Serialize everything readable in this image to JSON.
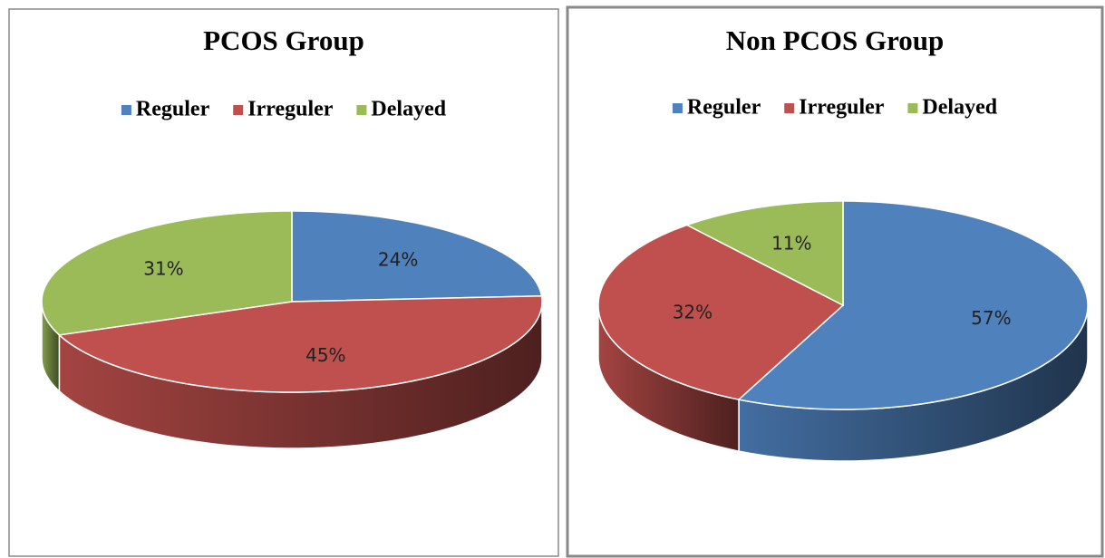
{
  "chart_data": [
    {
      "type": "pie",
      "title": "PCOS Group",
      "categories": [
        "Reguler",
        "Irreguler",
        "Delayed"
      ],
      "values": [
        24,
        45,
        31
      ],
      "value_labels": [
        "24%",
        "45%",
        "31%"
      ],
      "colors": [
        "#4f81bd",
        "#c0504d",
        "#9bbb59"
      ],
      "legend": "top"
    },
    {
      "type": "pie",
      "title": "Non PCOS Group",
      "categories": [
        "Reguler",
        "Irreguler",
        "Delayed"
      ],
      "values": [
        57,
        32,
        11
      ],
      "value_labels": [
        "57%",
        "32%",
        "11%"
      ],
      "colors": [
        "#4f81bd",
        "#c0504d",
        "#9bbb59"
      ],
      "legend": "top"
    }
  ]
}
